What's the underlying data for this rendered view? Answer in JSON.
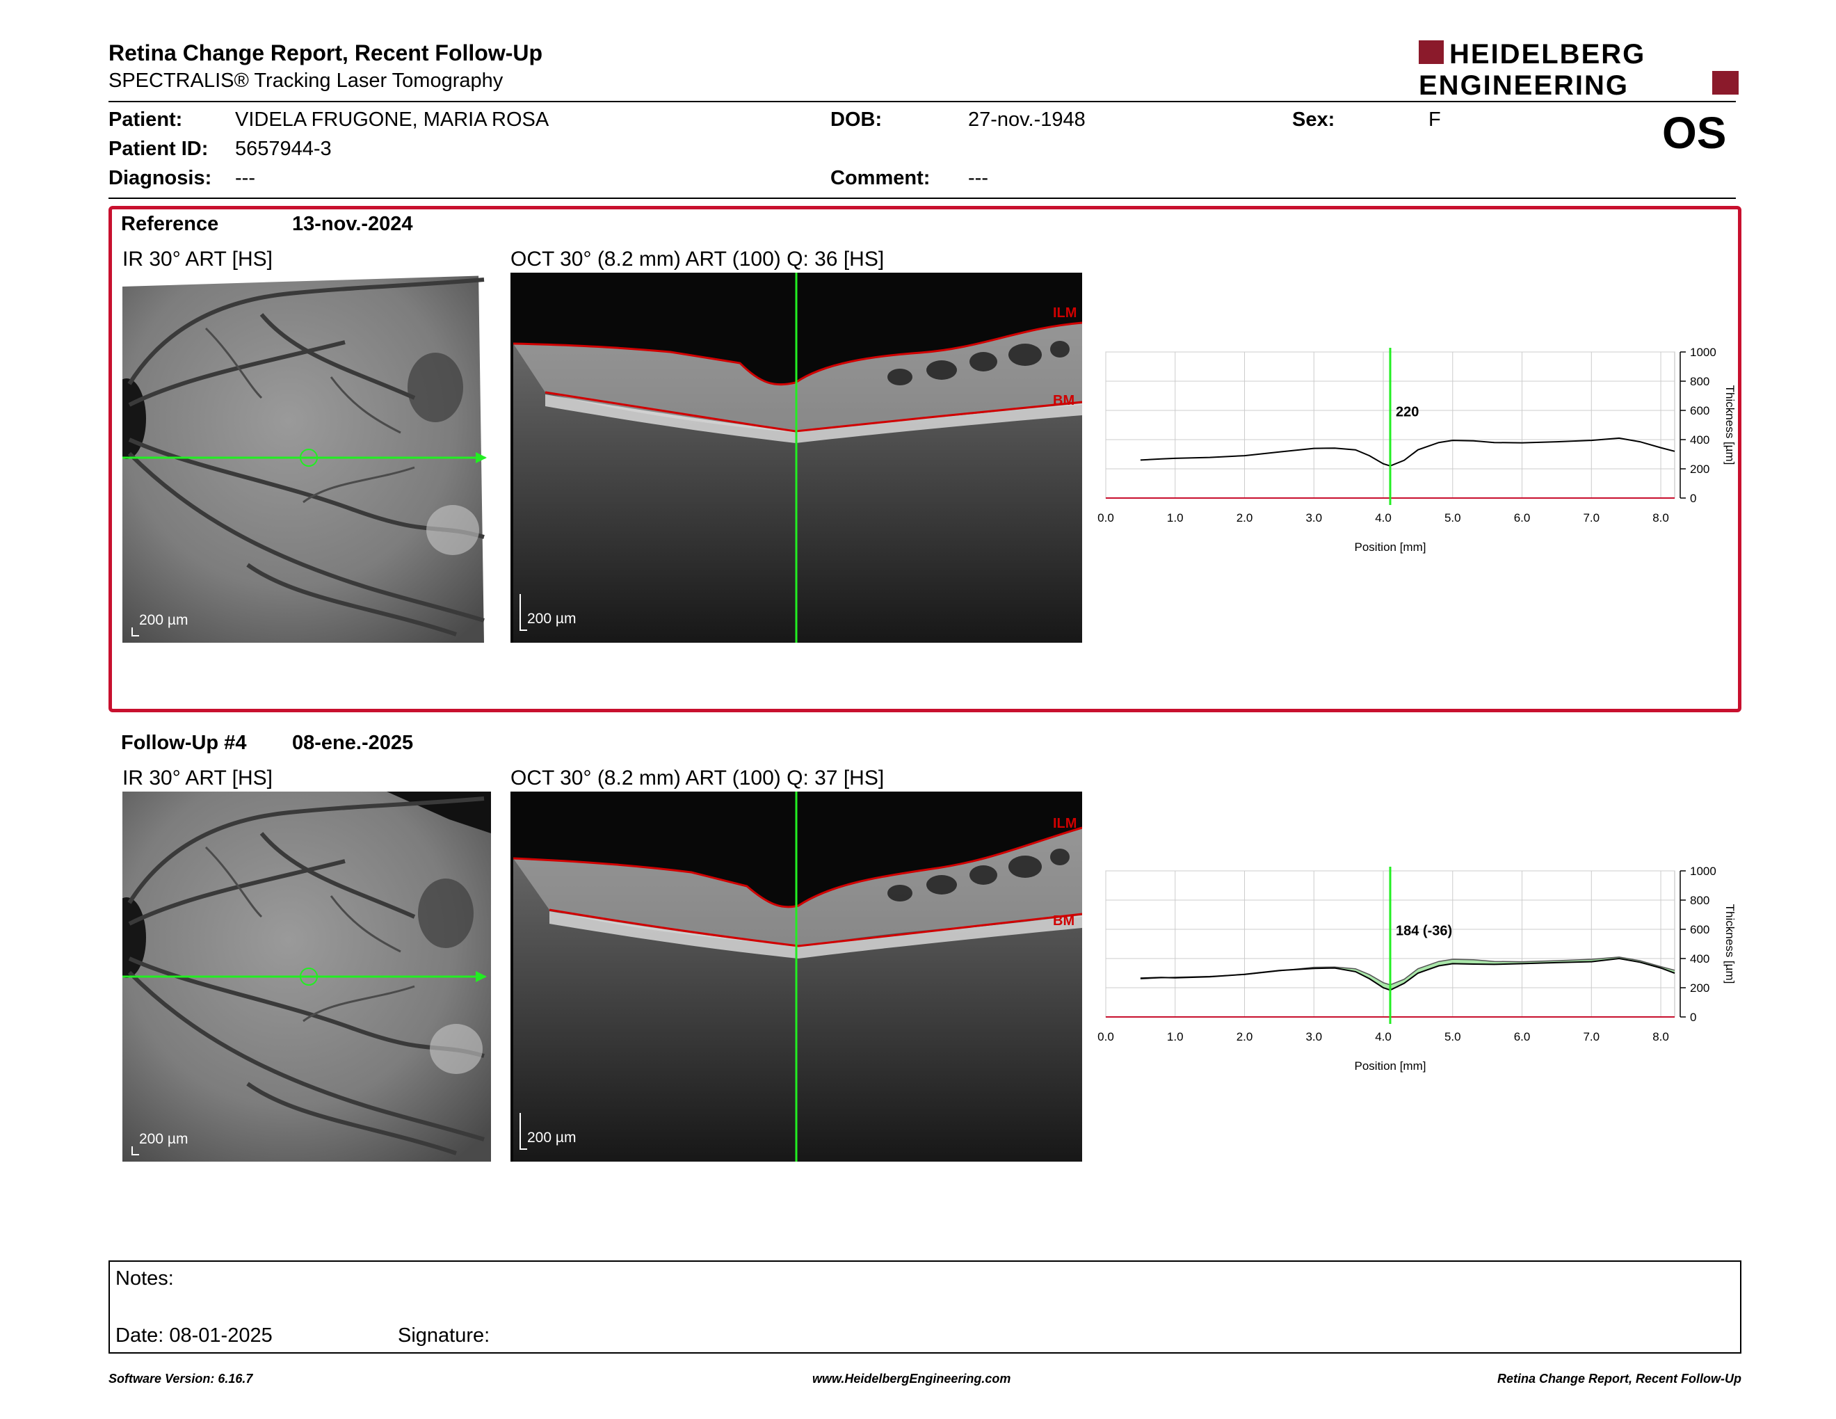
{
  "header": {
    "title": "Retina Change Report, Recent Follow-Up",
    "subtitle": "SPECTRALIS® Tracking Laser Tomography",
    "logo_line1": "HEIDELBERG",
    "logo_line2": "ENGINEERING",
    "brand_color": "#8b1a2b"
  },
  "patient": {
    "patient_label": "Patient:",
    "patient_name": "VIDELA FRUGONE, MARIA ROSA",
    "id_label": "Patient ID:",
    "id_value": "5657944-3",
    "diagnosis_label": "Diagnosis:",
    "diagnosis_value": "---",
    "dob_label": "DOB:",
    "dob_value": "27-nov.-1948",
    "comment_label": "Comment:",
    "comment_value": "---",
    "sex_label": "Sex:",
    "sex_value": "F",
    "eye": "OS"
  },
  "reference": {
    "label": "Reference",
    "date": "13-nov.-2024",
    "ir_title": "IR 30° ART [HS]",
    "oct_title": "OCT 30° (8.2 mm) ART (100) Q: 36 [HS]",
    "ir_scale": "200 µm",
    "oct_scale": "200 µm",
    "layer_top": "ILM",
    "layer_bottom": "BM",
    "box_color": "#c8102e"
  },
  "followup": {
    "label": "Follow-Up #4",
    "date": "08-ene.-2025",
    "ir_title": "IR 30° ART [HS]",
    "oct_title": "OCT 30° (8.2 mm) ART (100) Q: 37 [HS]",
    "ir_scale": "200 µm",
    "oct_scale": "200 µm",
    "layer_top": "ILM",
    "layer_bottom": "BM"
  },
  "chart_data": [
    {
      "type": "line",
      "xlabel": "Position [mm]",
      "ylabel": "Thickness [µm]",
      "xlim": [
        0.0,
        8.2
      ],
      "ylim": [
        0,
        1000
      ],
      "x_ticks": [
        "0.0",
        "1.0",
        "2.0",
        "3.0",
        "4.0",
        "5.0",
        "6.0",
        "7.0",
        "8.0"
      ],
      "y_ticks": [
        "0",
        "200",
        "400",
        "600",
        "800",
        "1000"
      ],
      "cursor_x": 4.1,
      "cursor_label": "220",
      "grid": true,
      "series": [
        {
          "x": [
            0.5,
            0.8,
            1.0,
            1.5,
            2.0,
            2.5,
            3.0,
            3.3,
            3.6,
            3.8,
            4.0,
            4.1,
            4.3,
            4.5,
            4.8,
            5.0,
            5.3,
            5.6,
            6.0,
            6.5,
            7.0,
            7.4,
            7.7,
            8.0,
            8.2
          ],
          "y": [
            260,
            268,
            272,
            278,
            290,
            315,
            340,
            342,
            330,
            290,
            235,
            220,
            258,
            330,
            380,
            395,
            392,
            380,
            378,
            385,
            395,
            410,
            385,
            345,
            320
          ]
        }
      ]
    },
    {
      "type": "line",
      "xlabel": "Position [mm]",
      "ylabel": "Thickness [µm]",
      "xlim": [
        0.0,
        8.2
      ],
      "ylim": [
        0,
        1000
      ],
      "x_ticks": [
        "0.0",
        "1.0",
        "2.0",
        "3.0",
        "4.0",
        "5.0",
        "6.0",
        "7.0",
        "8.0"
      ],
      "y_ticks": [
        "0",
        "200",
        "400",
        "600",
        "800",
        "1000"
      ],
      "cursor_x": 4.1,
      "cursor_label": "184 (-36)",
      "grid": true,
      "increase_color": "#9be39b",
      "decrease_color": "#e58a8a",
      "series": [
        {
          "x": [
            0.5,
            0.8,
            1.0,
            1.5,
            2.0,
            2.5,
            3.0,
            3.3,
            3.6,
            3.8,
            4.0,
            4.1,
            4.3,
            4.5,
            4.8,
            5.0,
            5.3,
            5.6,
            6.0,
            6.5,
            7.0,
            7.4,
            7.7,
            8.0,
            8.2
          ],
          "y": [
            265,
            270,
            268,
            275,
            292,
            318,
            332,
            335,
            310,
            262,
            200,
            184,
            230,
            300,
            350,
            365,
            362,
            360,
            365,
            372,
            378,
            400,
            375,
            335,
            300
          ]
        }
      ]
    }
  ],
  "notes": {
    "notes_label": "Notes:",
    "date_label": "Date: 08-01-2025",
    "signature_label": "Signature:"
  },
  "footer": {
    "software": "Software Version: 6.16.7",
    "website": "www.HeidelbergEngineering.com",
    "report_name": "Retina Change Report, Recent Follow-Up"
  }
}
